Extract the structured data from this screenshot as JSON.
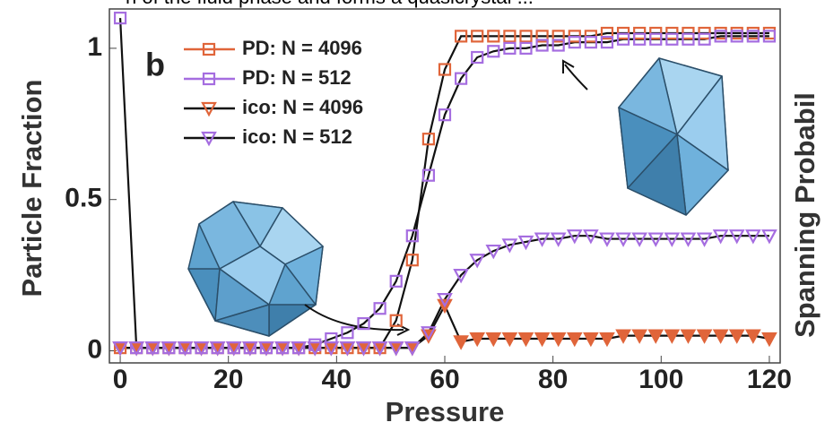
{
  "chart_data": {
    "type": "line",
    "caption_fragment": "n of the fluid phase and forms a quasicrystal ...",
    "panel_label": "b",
    "x_label": "Pressure",
    "y_label": "Particle Fraction",
    "y2_label": "Spanning Probabil",
    "x": [
      0,
      3,
      6,
      9,
      12,
      15,
      18,
      21,
      24,
      27,
      30,
      33,
      36,
      39,
      42,
      45,
      48,
      51,
      54,
      57,
      60,
      63,
      66,
      69,
      72,
      75,
      78,
      81,
      84,
      87,
      90,
      93,
      96,
      99,
      102,
      105,
      108,
      111,
      114,
      117,
      120
    ],
    "line_color": "#111111",
    "series": [
      {
        "name": "PD: N = 4096",
        "color": "#e0653a",
        "marker": "square",
        "values": [
          0.01,
          0.01,
          0.01,
          0.01,
          0.01,
          0.01,
          0.01,
          0.01,
          0.01,
          0.01,
          0.01,
          0.01,
          0.01,
          0.01,
          0.01,
          0.01,
          0.01,
          0.1,
          0.3,
          0.7,
          0.93,
          1.04,
          1.04,
          1.04,
          1.04,
          1.04,
          1.04,
          1.04,
          1.04,
          1.04,
          1.05,
          1.05,
          1.05,
          1.05,
          1.05,
          1.05,
          1.05,
          1.05,
          1.05,
          1.05,
          1.05
        ]
      },
      {
        "name": "PD: N = 512",
        "color": "#a56de0",
        "marker": "square",
        "values": [
          1.1,
          0.01,
          0.01,
          0.01,
          0.01,
          0.01,
          0.01,
          0.01,
          0.01,
          0.01,
          0.01,
          0.01,
          0.02,
          0.04,
          0.06,
          0.09,
          0.14,
          0.23,
          0.38,
          0.58,
          0.78,
          0.9,
          0.97,
          0.99,
          1.0,
          1.0,
          1.01,
          1.01,
          1.02,
          1.02,
          1.02,
          1.03,
          1.03,
          1.03,
          1.03,
          1.03,
          1.03,
          1.04,
          1.04,
          1.04,
          1.04
        ]
      },
      {
        "name": "ico: N = 4096",
        "color": "#e0653a",
        "marker": "triangle",
        "values": [
          0.01,
          0.01,
          0.01,
          0.01,
          0.01,
          0.01,
          0.01,
          0.01,
          0.01,
          0.01,
          0.01,
          0.01,
          0.01,
          0.01,
          0.01,
          0.01,
          0.01,
          0.01,
          0.01,
          0.05,
          0.15,
          0.03,
          0.04,
          0.04,
          0.04,
          0.04,
          0.04,
          0.04,
          0.04,
          0.04,
          0.04,
          0.05,
          0.05,
          0.05,
          0.05,
          0.05,
          0.05,
          0.05,
          0.05,
          0.05,
          0.04
        ]
      },
      {
        "name": "ico: N = 512",
        "color": "#a56de0",
        "marker": "triangle",
        "values": [
          0.01,
          0.01,
          0.01,
          0.01,
          0.01,
          0.01,
          0.01,
          0.01,
          0.01,
          0.01,
          0.01,
          0.01,
          0.01,
          0.01,
          0.01,
          0.01,
          0.01,
          0.01,
          0.01,
          0.06,
          0.17,
          0.25,
          0.3,
          0.33,
          0.35,
          0.36,
          0.37,
          0.37,
          0.38,
          0.38,
          0.37,
          0.37,
          0.37,
          0.37,
          0.37,
          0.37,
          0.37,
          0.38,
          0.38,
          0.38,
          0.38
        ]
      }
    ],
    "xlim": [
      -2,
      122
    ],
    "ylim": [
      -0.04,
      1.13
    ],
    "xticks": [
      0,
      20,
      40,
      60,
      80,
      100,
      120
    ],
    "yticks": [
      0,
      0.5,
      1
    ],
    "grid": false,
    "legend": "upper left"
  }
}
